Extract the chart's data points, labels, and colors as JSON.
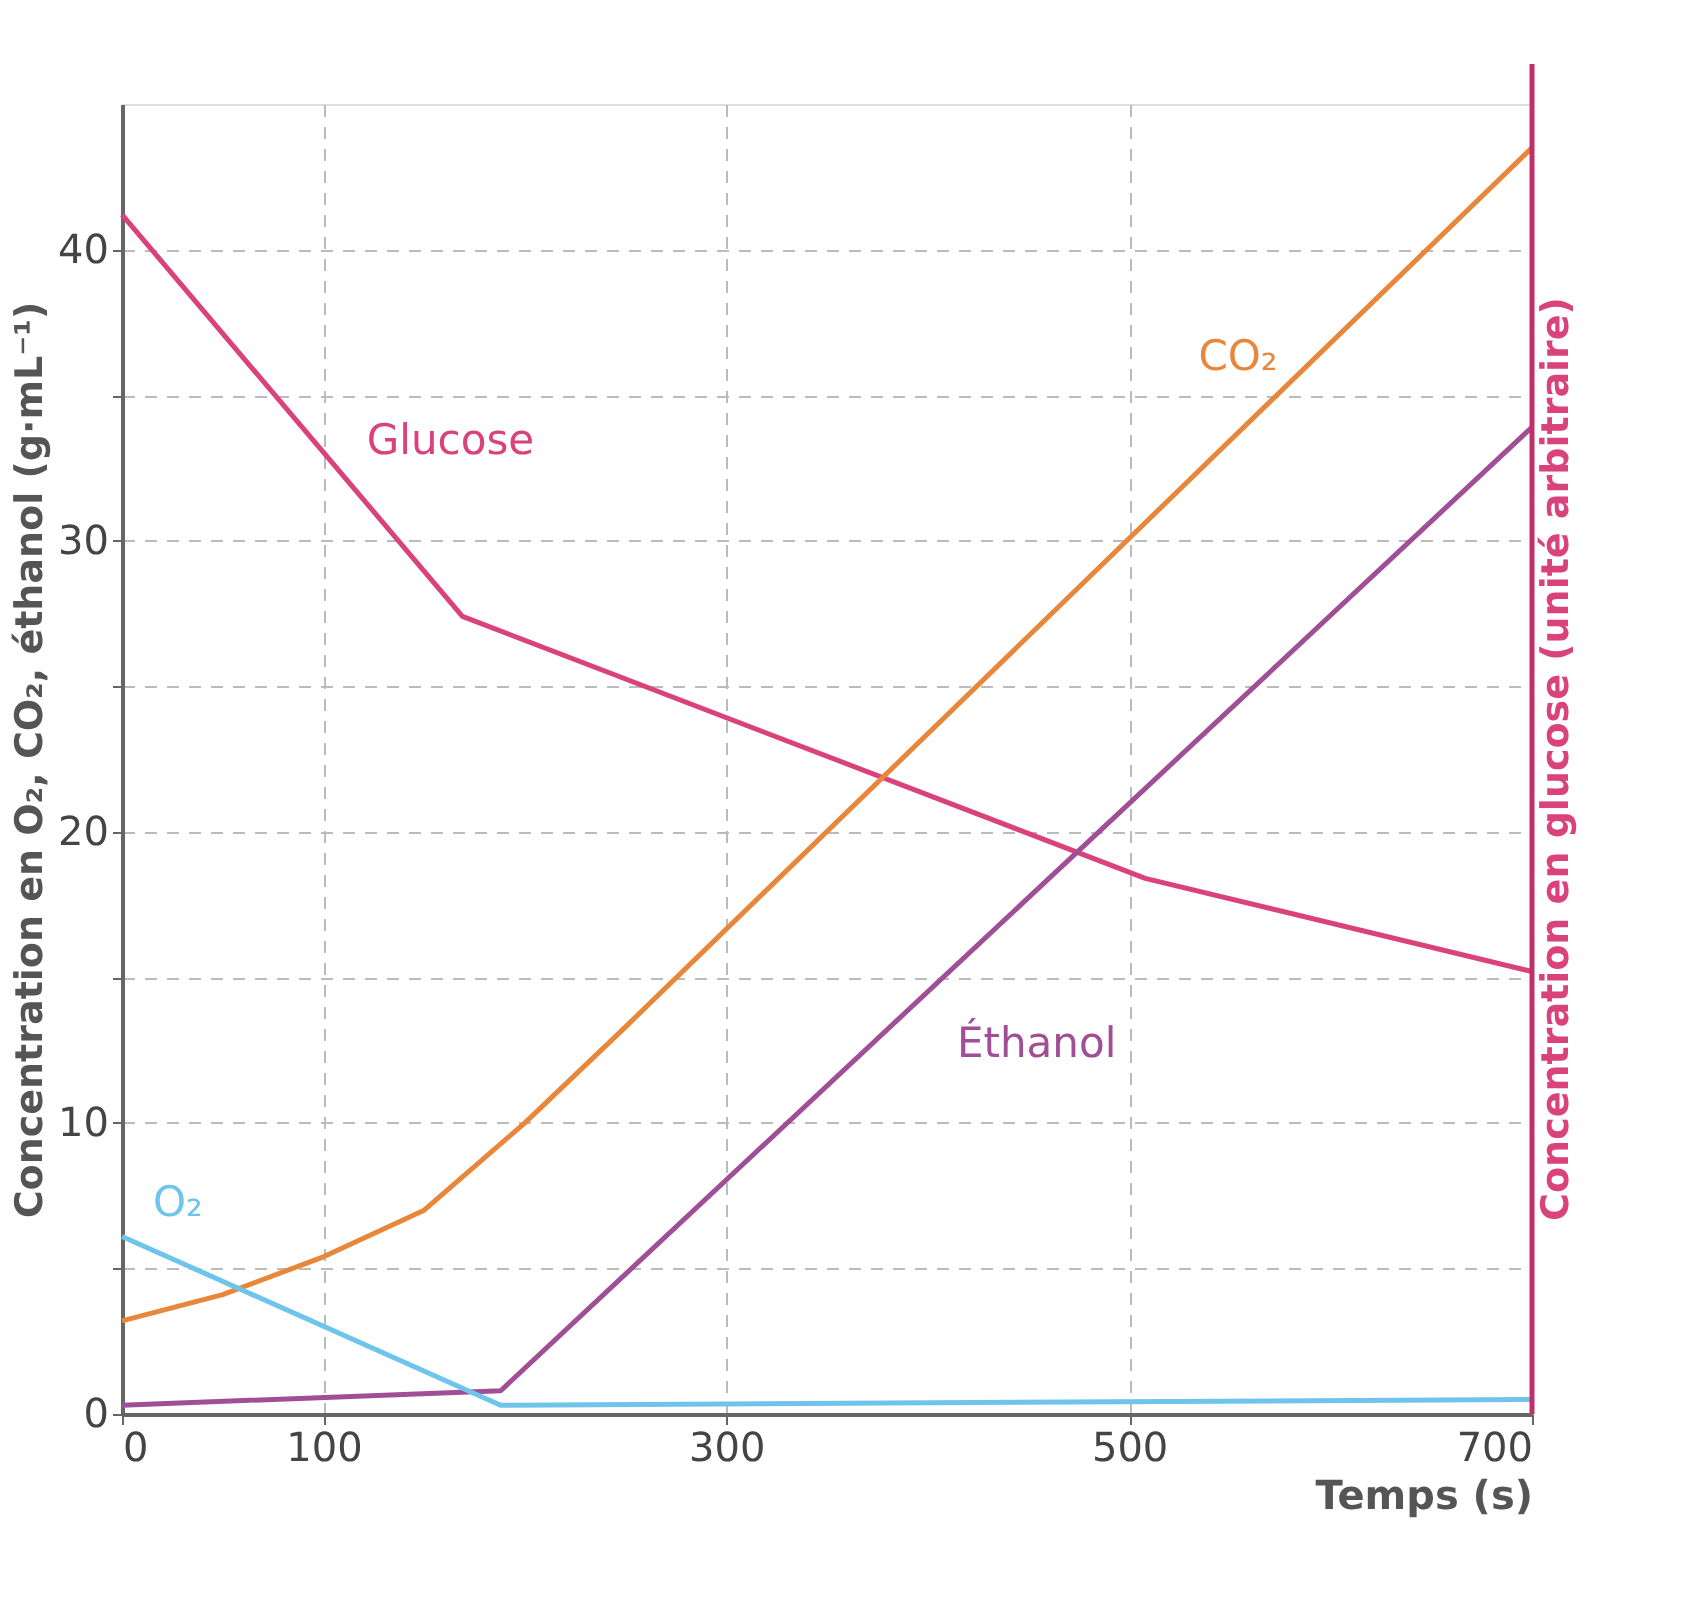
{
  "chart_data": {
    "type": "line",
    "xlabel": "Temps (s)",
    "ylabel": "Concentration en O₂, CO₂, éthanol (g·mL⁻¹)",
    "y2label": "Concentration en glucose (unité arbitraire)",
    "xlim": [
      0,
      700
    ],
    "xticks": [
      0,
      100,
      300,
      500,
      700
    ],
    "ylim": [
      0,
      45
    ],
    "yticks": [
      0,
      {
        "value": 5,
        "label": null
      },
      10,
      {
        "value": 15,
        "label": null
      },
      20,
      {
        "value": 25,
        "label": null
      },
      30,
      {
        "value": 35,
        "label": null
      },
      40
    ],
    "grid": true,
    "marker": "none",
    "line_style": "solid",
    "series": [
      {
        "name": "Glucose",
        "color": "#d9427a",
        "x": [
          0,
          169,
          508,
          700
        ],
        "values": [
          41.2,
          27.4,
          18.4,
          15.2
        ]
      },
      {
        "name": "CO₂",
        "color": "#e8873a",
        "x": [
          0,
          50,
          100,
          150,
          200,
          250,
          700
        ],
        "values": [
          3.2,
          4.1,
          5.4,
          7.0,
          10.0,
          13.3,
          43.5
        ]
      },
      {
        "name": "Éthanol",
        "color": "#a04e96",
        "x": [
          0,
          188,
          700
        ],
        "values": [
          0.3,
          0.8,
          33.9
        ]
      },
      {
        "name": "O₂",
        "color": "#6ec4ea",
        "x": [
          0,
          188,
          700
        ],
        "values": [
          6.1,
          0.3,
          0.5
        ]
      }
    ]
  }
}
